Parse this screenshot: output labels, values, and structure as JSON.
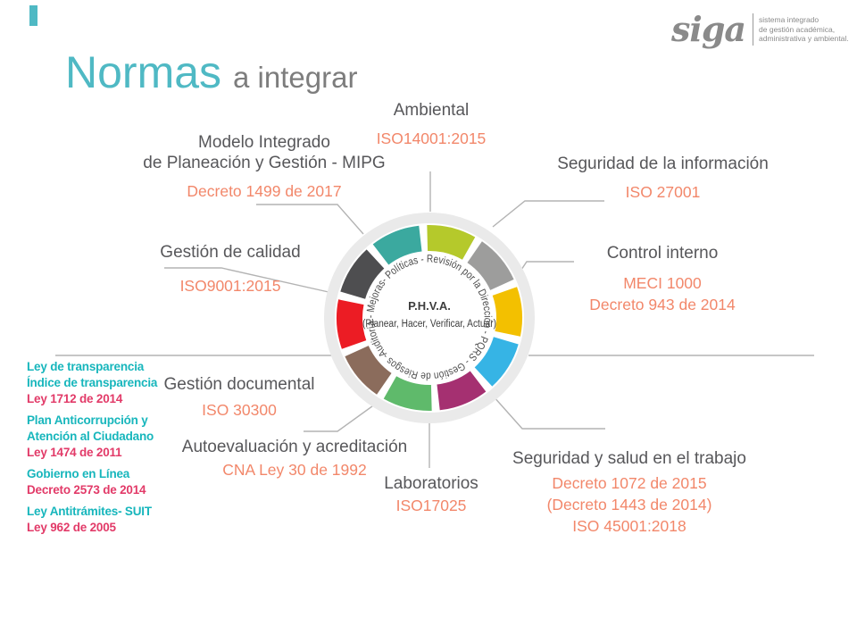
{
  "colors": {
    "accent_teal": "#4FB9C4",
    "label_gray": "#57575A",
    "ref_orange": "#F2876A",
    "list_teal": "#17B6BC",
    "list_crimson": "#E23A68",
    "connector_gray": "#B3B3B3"
  },
  "title": {
    "main": "Normas",
    "sub": "a integrar"
  },
  "logo": {
    "wordmark": "siga",
    "tagline": [
      "sistema integrado",
      "de gestión académica,",
      "administrativa y ambiental."
    ]
  },
  "hub": {
    "center_title": "P.H.V.A.",
    "center_subtitle": "(Planear, Hacer, Verificar, Actuar)",
    "ring_text": "Auditoría - Mejoras- Políticas - Revisión por la Dirección - PQRS - Gestión de Riesgos -",
    "segments": [
      {
        "name": "lime",
        "color": "#B5C92B"
      },
      {
        "name": "gray",
        "color": "#9D9D9C"
      },
      {
        "name": "gold",
        "color": "#F3C000"
      },
      {
        "name": "cyan",
        "color": "#36B4E5"
      },
      {
        "name": "magenta",
        "color": "#A53071"
      },
      {
        "name": "green",
        "color": "#5FBA6B"
      },
      {
        "name": "brown",
        "color": "#8B6C5C"
      },
      {
        "name": "red",
        "color": "#EC1C24"
      },
      {
        "name": "darkgray",
        "color": "#4E4E50"
      },
      {
        "name": "teal",
        "color": "#3BA99F"
      }
    ]
  },
  "labels": {
    "ambiental": {
      "lines": [
        "Ambiental"
      ],
      "refs": [
        "ISO14001:2015"
      ]
    },
    "mipg": {
      "lines": [
        "Modelo Integrado",
        "de Planeación y Gestión - MIPG"
      ],
      "refs": [
        "Decreto 1499 de 2017"
      ]
    },
    "seginfo": {
      "lines": [
        "Seguridad de la información"
      ],
      "refs": [
        "ISO 27001"
      ]
    },
    "control": {
      "lines": [
        "Control interno"
      ],
      "refs": [
        "MECI 1000",
        "Decreto 943 de 2014"
      ]
    },
    "calidad": {
      "lines": [
        "Gestión de calidad"
      ],
      "refs": [
        "ISO9001:2015"
      ]
    },
    "documental": {
      "lines": [
        "Gestión documental"
      ],
      "refs": [
        "ISO 30300"
      ]
    },
    "autoeval": {
      "lines": [
        "Autoevaluación y acreditación"
      ],
      "refs": [
        "CNA Ley 30 de 1992"
      ]
    },
    "laboratorios": {
      "lines": [
        "Laboratorios"
      ],
      "refs": [
        "ISO17025"
      ]
    },
    "salud": {
      "lines": [
        "Seguridad y salud en el trabajo"
      ],
      "refs": [
        "Decreto 1072 de 2015",
        "(Decreto 1443 de 2014)",
        "ISO 45001:2018"
      ]
    }
  },
  "left_list": [
    {
      "titles": [
        "Ley de transparencia",
        "Índice de transparencia"
      ],
      "refs": [
        "Ley 1712 de 2014"
      ]
    },
    {
      "titles": [
        "Plan Anticorrupción y",
        "Atención al Ciudadano"
      ],
      "refs": [
        "Ley 1474 de 2011"
      ]
    },
    {
      "titles": [
        "Gobierno en Línea"
      ],
      "refs": [
        "Decreto 2573 de 2014"
      ]
    },
    {
      "titles": [
        "Ley Antitrámites- SUIT"
      ],
      "refs": [
        "Ley 962 de 2005"
      ]
    }
  ]
}
